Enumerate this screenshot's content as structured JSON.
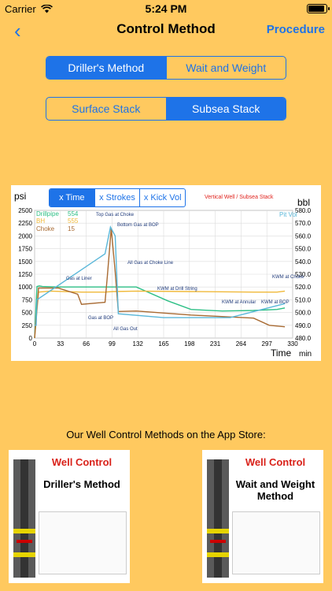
{
  "status_bar": {
    "carrier": "Carrier",
    "time": "5:24 PM"
  },
  "nav": {
    "back_glyph": "‹",
    "title": "Control Method",
    "right_button": "Procedure"
  },
  "method_segment": {
    "options": [
      "Driller's Method",
      "Wait and Weight"
    ],
    "selected": 0
  },
  "stack_segment": {
    "options": [
      "Surface Stack",
      "Subsea Stack"
    ],
    "selected": 1
  },
  "chart": {
    "tabs": [
      "x Time",
      "x Strokes",
      "x Kick Vol"
    ],
    "selected_tab": 0,
    "subtitle": "Vertical Well / Subsea Stack",
    "y_left_unit": "psi",
    "y_right_unit": "bbl",
    "x_unit_label": "Time",
    "x_unit": "min",
    "right_series_label": "Pit Vol",
    "legend": [
      {
        "name": "Drillpipe",
        "value": "554",
        "color": "#2DBF85"
      },
      {
        "name": "BH",
        "value": "555",
        "color": "#F0B93A"
      },
      {
        "name": "Choke",
        "value": "15",
        "color": "#A86A32"
      }
    ],
    "annotations": {
      "top_gas": "Top Gas at Choke",
      "bottom_gas": "Bottom Gas at BOP",
      "all_gas_choke": "All Gas at Choke Line",
      "gas_liner": "Gas at Liner",
      "gas_bop": "Gas at BOP",
      "all_gas_out": "All Gas Out",
      "kmw_drill": "KWM at Drill String",
      "kmw_annular": "KWM at Annular",
      "kmw_bit": "KWM at BOP",
      "kmw_choke": "KWM at Choke"
    }
  },
  "chart_data": {
    "type": "line",
    "x_ticks": [
      "0",
      "33",
      "66",
      "99",
      "132",
      "165",
      "198",
      "231",
      "264",
      "297",
      "330"
    ],
    "y_left_ticks": [
      "2500",
      "2250",
      "2000",
      "1750",
      "1500",
      "1250",
      "1000",
      "750",
      "500",
      "250",
      "0"
    ],
    "y_right_ticks": [
      "580.0",
      "570.0",
      "560.0",
      "550.0",
      "540.0",
      "530.0",
      "520.0",
      "510.0",
      "500.0",
      "490.0",
      "480.0"
    ],
    "xlim": [
      0,
      330
    ],
    "ylim_left": [
      0,
      2500
    ],
    "ylim_right": [
      480,
      580
    ],
    "series": [
      {
        "name": "Drillpipe",
        "color": "#2DBF85",
        "x": [
          0,
          3,
          6,
          10,
          30,
          60,
          90,
          100,
          130,
          170,
          200,
          240,
          280,
          310,
          320
        ],
        "y": [
          0,
          1010,
          1020,
          1010,
          1000,
          1000,
          1000,
          1000,
          1000,
          730,
          560,
          530,
          540,
          560,
          590
        ]
      },
      {
        "name": "BH",
        "color": "#F0B93A",
        "x": [
          0,
          5,
          20,
          60,
          90,
          100,
          130,
          200,
          280,
          310,
          320
        ],
        "y": [
          0,
          900,
          920,
          900,
          900,
          910,
          920,
          910,
          900,
          900,
          920
        ]
      },
      {
        "name": "Choke",
        "color": "#A86A32",
        "x": [
          0,
          5,
          30,
          55,
          60,
          90,
          93,
          98,
          103,
          107,
          130,
          200,
          280,
          300,
          320
        ],
        "y": [
          0,
          980,
          980,
          860,
          660,
          700,
          1200,
          2150,
          1300,
          520,
          530,
          450,
          390,
          250,
          220
        ]
      },
      {
        "name": "Pit Vol",
        "color": "#5AB7D9",
        "x": [
          0,
          2,
          3,
          90,
          97,
          103,
          107,
          165,
          250,
          320
        ],
        "y": [
          490,
          490,
          510,
          546,
          567,
          560,
          499,
          496,
          496,
          507
        ]
      }
    ]
  },
  "promo": {
    "text": "Our Well Control Methods on the App Store:",
    "cards": [
      {
        "brand": "Well Control",
        "method": "Driller's Method"
      },
      {
        "brand": "Well Control",
        "method": "Wait and Weight Method"
      }
    ]
  },
  "colors": {
    "background": "#FFC95F",
    "accent": "#1E73E8",
    "brand_red": "#D9221A"
  }
}
